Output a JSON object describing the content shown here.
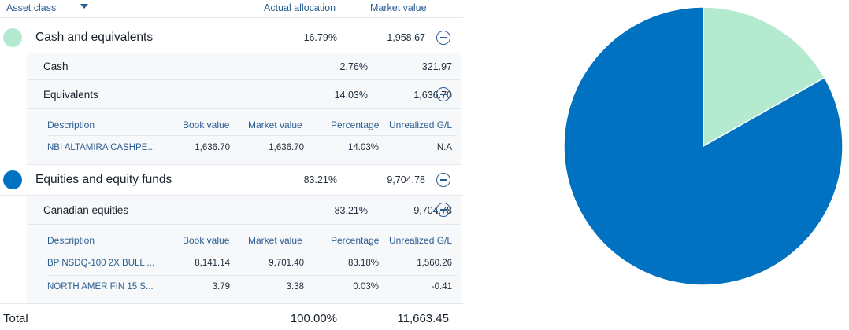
{
  "header": {
    "asset_class": "Asset class",
    "actual_allocation": "Actual allocation",
    "market_value": "Market value"
  },
  "colors": {
    "cash": "#b3ead0",
    "equities": "#0072c1",
    "accent": "#2c5e93"
  },
  "groups": [
    {
      "name": "Cash and equivalents",
      "allocation": "16.79%",
      "market_value": "1,958.67",
      "subgroups": [
        {
          "name": "Cash",
          "allocation": "2.76%",
          "market_value": "321.97"
        },
        {
          "name": "Equivalents",
          "allocation": "14.03%",
          "market_value": "1,636.70",
          "columns": [
            "Description",
            "Book value",
            "Market value",
            "Percentage",
            "Unrealized G/L"
          ],
          "holdings": [
            {
              "description": "NBI ALTAMIRA CASHPE...",
              "book_value": "1,636.70",
              "market_value": "1,636.70",
              "percentage": "14.03%",
              "unrealized": "N.A"
            }
          ]
        }
      ]
    },
    {
      "name": "Equities and equity funds",
      "allocation": "83.21%",
      "market_value": "9,704.78",
      "subgroups": [
        {
          "name": "Canadian equities",
          "allocation": "83.21%",
          "market_value": "9,704.78",
          "columns": [
            "Description",
            "Book value",
            "Market value",
            "Percentage",
            "Unrealized G/L"
          ],
          "holdings": [
            {
              "description": "BP NSDQ-100 2X BULL ...",
              "book_value": "8,141.14",
              "market_value": "9,701.40",
              "percentage": "83.18%",
              "unrealized": "1,560.26"
            },
            {
              "description": "NORTH AMER FIN 15 S...",
              "book_value": "3.79",
              "market_value": "3.38",
              "percentage": "0.03%",
              "unrealized": "-0.41"
            }
          ]
        }
      ]
    }
  ],
  "total": {
    "label": "Total",
    "allocation": "100.00%",
    "market_value": "11,663.45"
  },
  "chart_data": {
    "type": "pie",
    "categories": [
      "Cash and equivalents",
      "Equities and equity funds"
    ],
    "values": [
      16.79,
      83.21
    ],
    "colors": [
      "#b3ead0",
      "#0072c1"
    ]
  }
}
